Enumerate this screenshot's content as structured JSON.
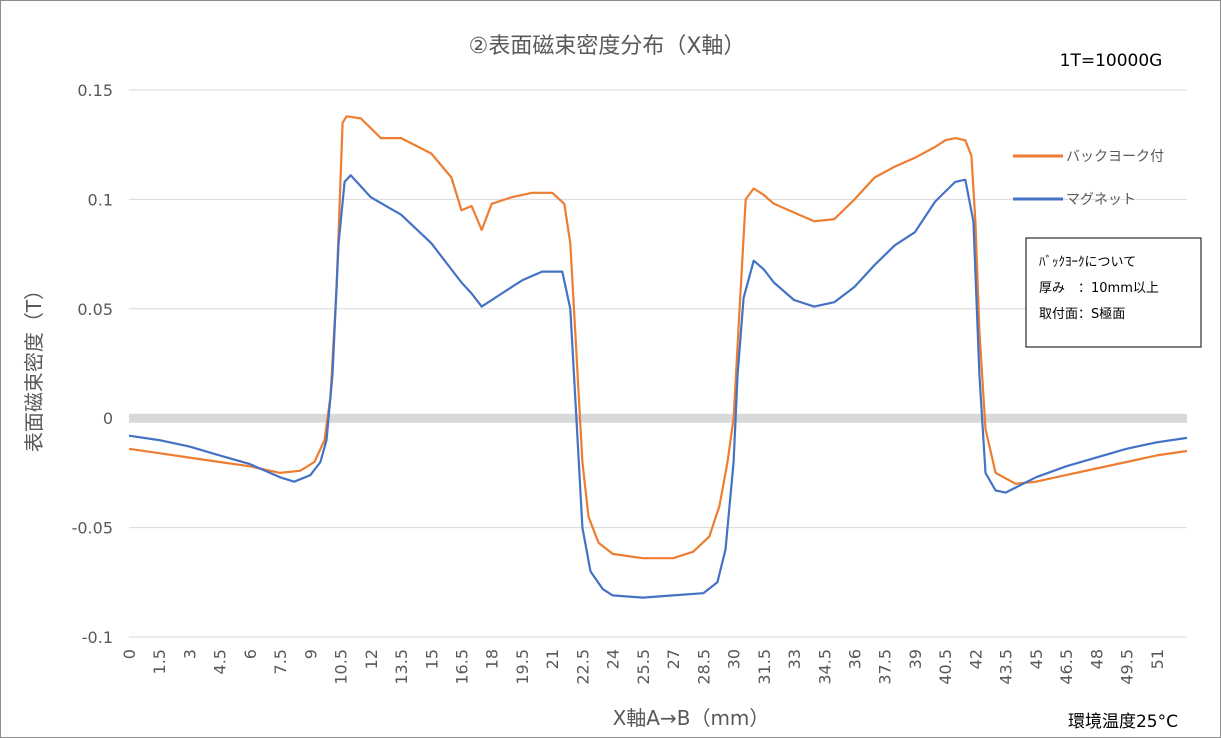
{
  "chart_data": {
    "type": "line",
    "title": "②表面磁束密度分布（X軸）",
    "unit_note": "1T=10000G",
    "xlabel": "X軸A→B（mm）",
    "ylabel": "表面磁束密度（T）",
    "ylim": [
      -0.1,
      0.15
    ],
    "yticks": [
      "0.15",
      "0.1",
      "0.05",
      "0",
      "-0.05",
      "-0.1"
    ],
    "ytick_values": [
      0.15,
      0.1,
      0.05,
      0,
      -0.05,
      -0.1
    ],
    "xlim": [
      0,
      52.5
    ],
    "xticks": [
      "0",
      "1.5",
      "3",
      "4.5",
      "6",
      "7.5",
      "9",
      "10.5",
      "12",
      "13.5",
      "15",
      "16.5",
      "18",
      "19.5",
      "21",
      "22.5",
      "24",
      "25.5",
      "27",
      "28.5",
      "30",
      "31.5",
      "33",
      "34.5",
      "36",
      "37.5",
      "39",
      "40.5",
      "42",
      "43.5",
      "45",
      "46.5",
      "48",
      "49.5",
      "51"
    ],
    "grid": true,
    "legend_position": "right",
    "footnote": "環境温度25°C",
    "info_box": [
      "ﾊﾞｯｸﾖｰｸについて",
      "厚み　：10mm以上",
      "取付面：S極面"
    ],
    "colors": {
      "backyoke": "#ED7D31",
      "magnet": "#4472C4",
      "zero_line": "#D9D9D9",
      "grid": "#D9D9D9"
    },
    "series": [
      {
        "name": "バックヨーク付",
        "color": "#ED7D31",
        "points": [
          [
            0,
            -0.014
          ],
          [
            1.5,
            -0.016
          ],
          [
            3,
            -0.018
          ],
          [
            4.5,
            -0.02
          ],
          [
            6,
            -0.022
          ],
          [
            7.5,
            -0.025
          ],
          [
            8.5,
            -0.024
          ],
          [
            9.2,
            -0.02
          ],
          [
            9.7,
            -0.01
          ],
          [
            10.0,
            0.01
          ],
          [
            10.3,
            0.06
          ],
          [
            10.6,
            0.135
          ],
          [
            10.8,
            0.138
          ],
          [
            11.5,
            0.137
          ],
          [
            12.5,
            0.128
          ],
          [
            13.5,
            0.128
          ],
          [
            15,
            0.121
          ],
          [
            16,
            0.11
          ],
          [
            16.5,
            0.095
          ],
          [
            17,
            0.097
          ],
          [
            17.5,
            0.086
          ],
          [
            18,
            0.098
          ],
          [
            19,
            0.101
          ],
          [
            20,
            0.103
          ],
          [
            21,
            0.103
          ],
          [
            21.6,
            0.098
          ],
          [
            21.9,
            0.08
          ],
          [
            22.2,
            0.03
          ],
          [
            22.5,
            -0.02
          ],
          [
            22.8,
            -0.045
          ],
          [
            23.3,
            -0.057
          ],
          [
            24,
            -0.062
          ],
          [
            25.5,
            -0.064
          ],
          [
            27,
            -0.064
          ],
          [
            28,
            -0.061
          ],
          [
            28.8,
            -0.054
          ],
          [
            29.3,
            -0.04
          ],
          [
            29.7,
            -0.02
          ],
          [
            30,
            0.0
          ],
          [
            30.3,
            0.05
          ],
          [
            30.6,
            0.1
          ],
          [
            31,
            0.105
          ],
          [
            31.5,
            0.102
          ],
          [
            32,
            0.098
          ],
          [
            33,
            0.094
          ],
          [
            34,
            0.09
          ],
          [
            35,
            0.091
          ],
          [
            36,
            0.1
          ],
          [
            37,
            0.11
          ],
          [
            38,
            0.115
          ],
          [
            39,
            0.119
          ],
          [
            40,
            0.124
          ],
          [
            40.5,
            0.127
          ],
          [
            41,
            0.128
          ],
          [
            41.5,
            0.127
          ],
          [
            41.8,
            0.12
          ],
          [
            42.0,
            0.09
          ],
          [
            42.2,
            0.04
          ],
          [
            42.5,
            -0.005
          ],
          [
            43,
            -0.025
          ],
          [
            44,
            -0.03
          ],
          [
            45,
            -0.029
          ],
          [
            46.5,
            -0.026
          ],
          [
            48,
            -0.023
          ],
          [
            49.5,
            -0.02
          ],
          [
            51,
            -0.017
          ],
          [
            52.5,
            -0.015
          ]
        ]
      },
      {
        "name": "マグネット",
        "color": "#4472C4",
        "points": [
          [
            0,
            -0.008
          ],
          [
            1.5,
            -0.01
          ],
          [
            3,
            -0.013
          ],
          [
            4.5,
            -0.017
          ],
          [
            6,
            -0.021
          ],
          [
            7.5,
            -0.027
          ],
          [
            8.2,
            -0.029
          ],
          [
            9,
            -0.026
          ],
          [
            9.5,
            -0.02
          ],
          [
            9.8,
            -0.01
          ],
          [
            10.1,
            0.02
          ],
          [
            10.4,
            0.08
          ],
          [
            10.7,
            0.108
          ],
          [
            11,
            0.111
          ],
          [
            12,
            0.101
          ],
          [
            13.5,
            0.093
          ],
          [
            15,
            0.08
          ],
          [
            16.5,
            0.062
          ],
          [
            17,
            0.057
          ],
          [
            17.5,
            0.051
          ],
          [
            18.5,
            0.057
          ],
          [
            19.5,
            0.063
          ],
          [
            20.5,
            0.067
          ],
          [
            21.5,
            0.067
          ],
          [
            21.9,
            0.05
          ],
          [
            22.2,
            0.0
          ],
          [
            22.5,
            -0.05
          ],
          [
            22.9,
            -0.07
          ],
          [
            23.5,
            -0.078
          ],
          [
            24,
            -0.081
          ],
          [
            25.5,
            -0.082
          ],
          [
            27,
            -0.081
          ],
          [
            28.5,
            -0.08
          ],
          [
            29.2,
            -0.075
          ],
          [
            29.6,
            -0.06
          ],
          [
            30,
            -0.02
          ],
          [
            30.2,
            0.02
          ],
          [
            30.5,
            0.055
          ],
          [
            31,
            0.072
          ],
          [
            31.5,
            0.068
          ],
          [
            32,
            0.062
          ],
          [
            33,
            0.054
          ],
          [
            34,
            0.051
          ],
          [
            35,
            0.053
          ],
          [
            36,
            0.06
          ],
          [
            37,
            0.07
          ],
          [
            38,
            0.079
          ],
          [
            39,
            0.085
          ],
          [
            40,
            0.099
          ],
          [
            41,
            0.108
          ],
          [
            41.5,
            0.109
          ],
          [
            41.9,
            0.09
          ],
          [
            42.2,
            0.02
          ],
          [
            42.5,
            -0.025
          ],
          [
            43,
            -0.033
          ],
          [
            43.5,
            -0.034
          ],
          [
            45,
            -0.027
          ],
          [
            46.5,
            -0.022
          ],
          [
            48,
            -0.018
          ],
          [
            49.5,
            -0.014
          ],
          [
            51,
            -0.011
          ],
          [
            52.5,
            -0.009
          ]
        ]
      }
    ]
  }
}
